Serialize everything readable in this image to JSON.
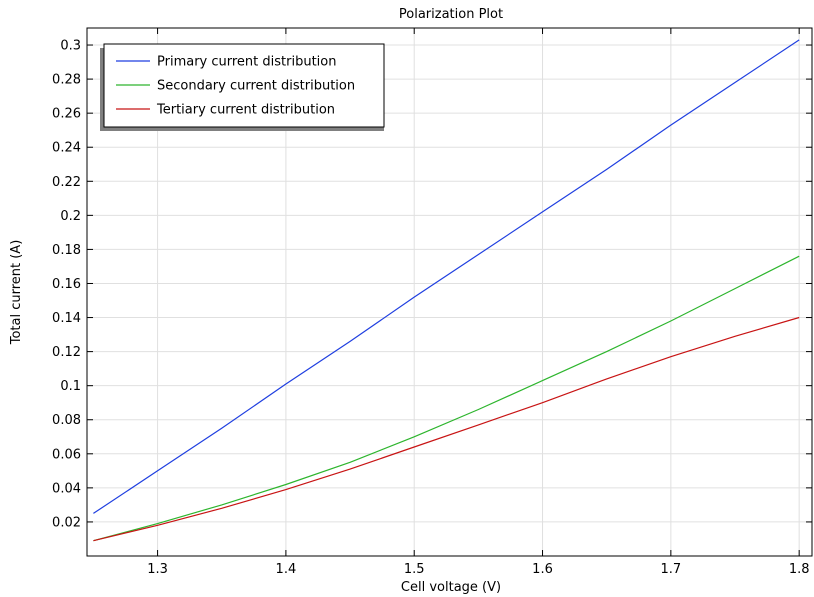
{
  "chart_data": {
    "type": "line",
    "title": "Polarization Plot",
    "xlabel": "Cell voltage (V)",
    "ylabel": "Total current (A)",
    "xlim": [
      1.245,
      1.81
    ],
    "ylim": [
      0,
      0.31
    ],
    "xticks": [
      1.3,
      1.4,
      1.5,
      1.6,
      1.7,
      1.8
    ],
    "xtick_labels": [
      "1.3",
      "1.4",
      "1.5",
      "1.6",
      "1.7",
      "1.8"
    ],
    "yticks": [
      0.02,
      0.04,
      0.06,
      0.08,
      0.1,
      0.12,
      0.14,
      0.16,
      0.18,
      0.2,
      0.22,
      0.24,
      0.26,
      0.28,
      0.3
    ],
    "ytick_labels": [
      "0.02",
      "0.04",
      "0.06",
      "0.08",
      "0.1",
      "0.12",
      "0.14",
      "0.16",
      "0.18",
      "0.2",
      "0.22",
      "0.24",
      "0.26",
      "0.28",
      "0.3"
    ],
    "grid": true,
    "legend_position": "top-left",
    "x": [
      1.25,
      1.3,
      1.35,
      1.4,
      1.45,
      1.5,
      1.55,
      1.6,
      1.65,
      1.7,
      1.75,
      1.8
    ],
    "series": [
      {
        "name": "Primary current distribution",
        "color": "#1f3fe0",
        "values": [
          0.025,
          0.05,
          0.075,
          0.101,
          0.126,
          0.152,
          0.177,
          0.202,
          0.227,
          0.253,
          0.278,
          0.303
        ]
      },
      {
        "name": "Secondary current distribution",
        "color": "#2db52d",
        "values": [
          0.009,
          0.019,
          0.03,
          0.042,
          0.055,
          0.07,
          0.086,
          0.103,
          0.12,
          0.138,
          0.157,
          0.176
        ]
      },
      {
        "name": "Tertiary current distribution",
        "color": "#c81414",
        "values": [
          0.009,
          0.018,
          0.028,
          0.039,
          0.051,
          0.064,
          0.077,
          0.09,
          0.104,
          0.117,
          0.129,
          0.14
        ]
      }
    ]
  }
}
